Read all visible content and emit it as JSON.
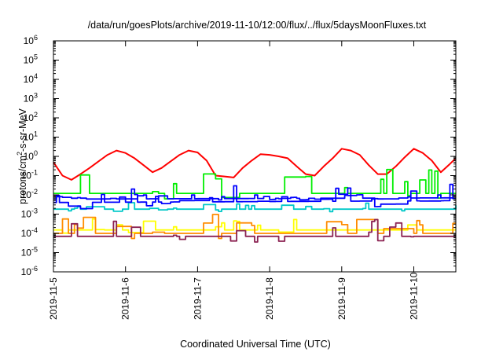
{
  "chart_data": {
    "type": "line",
    "title": "/data/run/goesPlots/archive/2019-11-10/12:00/flux/../flux/5daysMoonFluxes.txt",
    "xlabel": "Coordinated Universal Time (UTC)",
    "ylabel": {
      "base": "protons/cm",
      "sup": "2",
      "rest": "-s-sr-MeV"
    },
    "y_scale": "log",
    "ylim": [
      1e-06,
      1000000.0
    ],
    "y_ticks": [
      {
        "value": 1e-06,
        "exp": "-6"
      },
      {
        "value": 1e-05,
        "exp": "-5"
      },
      {
        "value": 0.0001,
        "exp": "-4"
      },
      {
        "value": 0.001,
        "exp": "-3"
      },
      {
        "value": 0.01,
        "exp": "-2"
      },
      {
        "value": 0.1,
        "exp": "-1"
      },
      {
        "value": 1.0,
        "exp": "0"
      },
      {
        "value": 10.0,
        "exp": "1"
      },
      {
        "value": 100.0,
        "exp": "2"
      },
      {
        "value": 1000.0,
        "exp": "3"
      },
      {
        "value": 10000.0,
        "exp": "4"
      },
      {
        "value": 100000.0,
        "exp": "5"
      },
      {
        "value": 1000000.0,
        "exp": "6"
      }
    ],
    "tick_base": "10",
    "xlim": [
      "2019-11-05T00:00",
      "2019-11-10T14:00"
    ],
    "x_ticks": [
      "2019-11-5",
      "2019-11-6",
      "2019-11-7",
      "2019-11-8",
      "2019-11-9",
      "2019-11-10"
    ],
    "grid": false,
    "legend": "none",
    "series": [
      {
        "color": "#ff0000",
        "style": "smooth",
        "points": [
          [
            "2019-11-05T00:00",
            0.5
          ],
          [
            "2019-11-05T03:00",
            0.1
          ],
          [
            "2019-11-05T06:00",
            0.06
          ],
          [
            "2019-11-05T09:00",
            0.12
          ],
          [
            "2019-11-05T12:00",
            0.25
          ],
          [
            "2019-11-05T15:00",
            0.55
          ],
          [
            "2019-11-05T18:00",
            1.2
          ],
          [
            "2019-11-05T21:00",
            2.0
          ],
          [
            "2019-11-06T00:00",
            1.5
          ],
          [
            "2019-11-06T03:00",
            0.8
          ],
          [
            "2019-11-06T06:00",
            0.35
          ],
          [
            "2019-11-06T09:00",
            0.15
          ],
          [
            "2019-11-06T12:00",
            0.25
          ],
          [
            "2019-11-06T15:00",
            0.55
          ],
          [
            "2019-11-06T18:00",
            1.2
          ],
          [
            "2019-11-06T21:00",
            2.0
          ],
          [
            "2019-11-07T00:00",
            1.6
          ],
          [
            "2019-11-07T03:00",
            0.6
          ],
          [
            "2019-11-07T06:00",
            0.1
          ],
          [
            "2019-11-07T09:00",
            0.09
          ],
          [
            "2019-11-07T12:00",
            0.08
          ],
          [
            "2019-11-07T15:00",
            0.25
          ],
          [
            "2019-11-07T18:00",
            0.6
          ],
          [
            "2019-11-07T21:00",
            1.3
          ],
          [
            "2019-11-08T00:00",
            1.2
          ],
          [
            "2019-11-08T03:00",
            1.0
          ],
          [
            "2019-11-08T06:00",
            0.8
          ],
          [
            "2019-11-08T09:00",
            0.3
          ],
          [
            "2019-11-08T12:00",
            0.12
          ],
          [
            "2019-11-08T15:00",
            0.1
          ],
          [
            "2019-11-08T18:00",
            0.3
          ],
          [
            "2019-11-08T21:00",
            0.8
          ],
          [
            "2019-11-09T00:00",
            2.5
          ],
          [
            "2019-11-09T03:00",
            2.0
          ],
          [
            "2019-11-09T06:00",
            1.2
          ],
          [
            "2019-11-09T09:00",
            0.35
          ],
          [
            "2019-11-09T12:00",
            0.12
          ],
          [
            "2019-11-09T15:00",
            0.12
          ],
          [
            "2019-11-09T18:00",
            0.3
          ],
          [
            "2019-11-09T21:00",
            0.9
          ],
          [
            "2019-11-10T00:00",
            2.5
          ],
          [
            "2019-11-10T03:00",
            1.5
          ],
          [
            "2019-11-10T06:00",
            0.6
          ],
          [
            "2019-11-10T09:00",
            0.15
          ],
          [
            "2019-11-10T12:00",
            0.4
          ],
          [
            "2019-11-10T14:00",
            0.8
          ]
        ]
      },
      {
        "color": "#00ee00",
        "style": "noisy",
        "noise": 1.3,
        "seed": 11,
        "points": [
          [
            "2019-11-05T00:00",
            0.012
          ],
          [
            "2019-11-10T14:00",
            0.012
          ]
        ]
      },
      {
        "color": "#00c8c8",
        "style": "noisy",
        "noise": 0.35,
        "seed": 29,
        "points": [
          [
            "2019-11-05T00:00",
            0.0018
          ],
          [
            "2019-11-10T14:00",
            0.0018
          ]
        ]
      },
      {
        "color": "#0000ff",
        "style": "noisy",
        "noise": 0.9,
        "seed": 47,
        "points": [
          [
            "2019-11-05T00:00",
            0.004
          ],
          [
            "2019-11-10T14:00",
            0.005
          ]
        ]
      },
      {
        "color": "#0000ff",
        "style": "noisy",
        "noise": 0.2,
        "seed": 53,
        "points": [
          [
            "2019-11-05T00:00",
            0.006
          ],
          [
            "2019-11-10T14:00",
            0.007
          ]
        ]
      },
      {
        "color": "#ffff00",
        "style": "noisy",
        "noise": 0.6,
        "seed": 71,
        "points": [
          [
            "2019-11-05T00:00",
            0.00015
          ],
          [
            "2019-11-10T14:00",
            0.00015
          ]
        ]
      },
      {
        "color": "#ff8c00",
        "style": "noisy",
        "noise": 1.1,
        "seed": 83,
        "points": [
          [
            "2019-11-05T00:00",
            0.0001
          ],
          [
            "2019-11-10T14:00",
            0.0001
          ]
        ]
      },
      {
        "color": "#8b2252",
        "style": "noisy",
        "noise": 0.9,
        "seed": 97,
        "points": [
          [
            "2019-11-05T00:00",
            7e-05
          ],
          [
            "2019-11-10T14:00",
            7e-05
          ]
        ]
      }
    ]
  }
}
